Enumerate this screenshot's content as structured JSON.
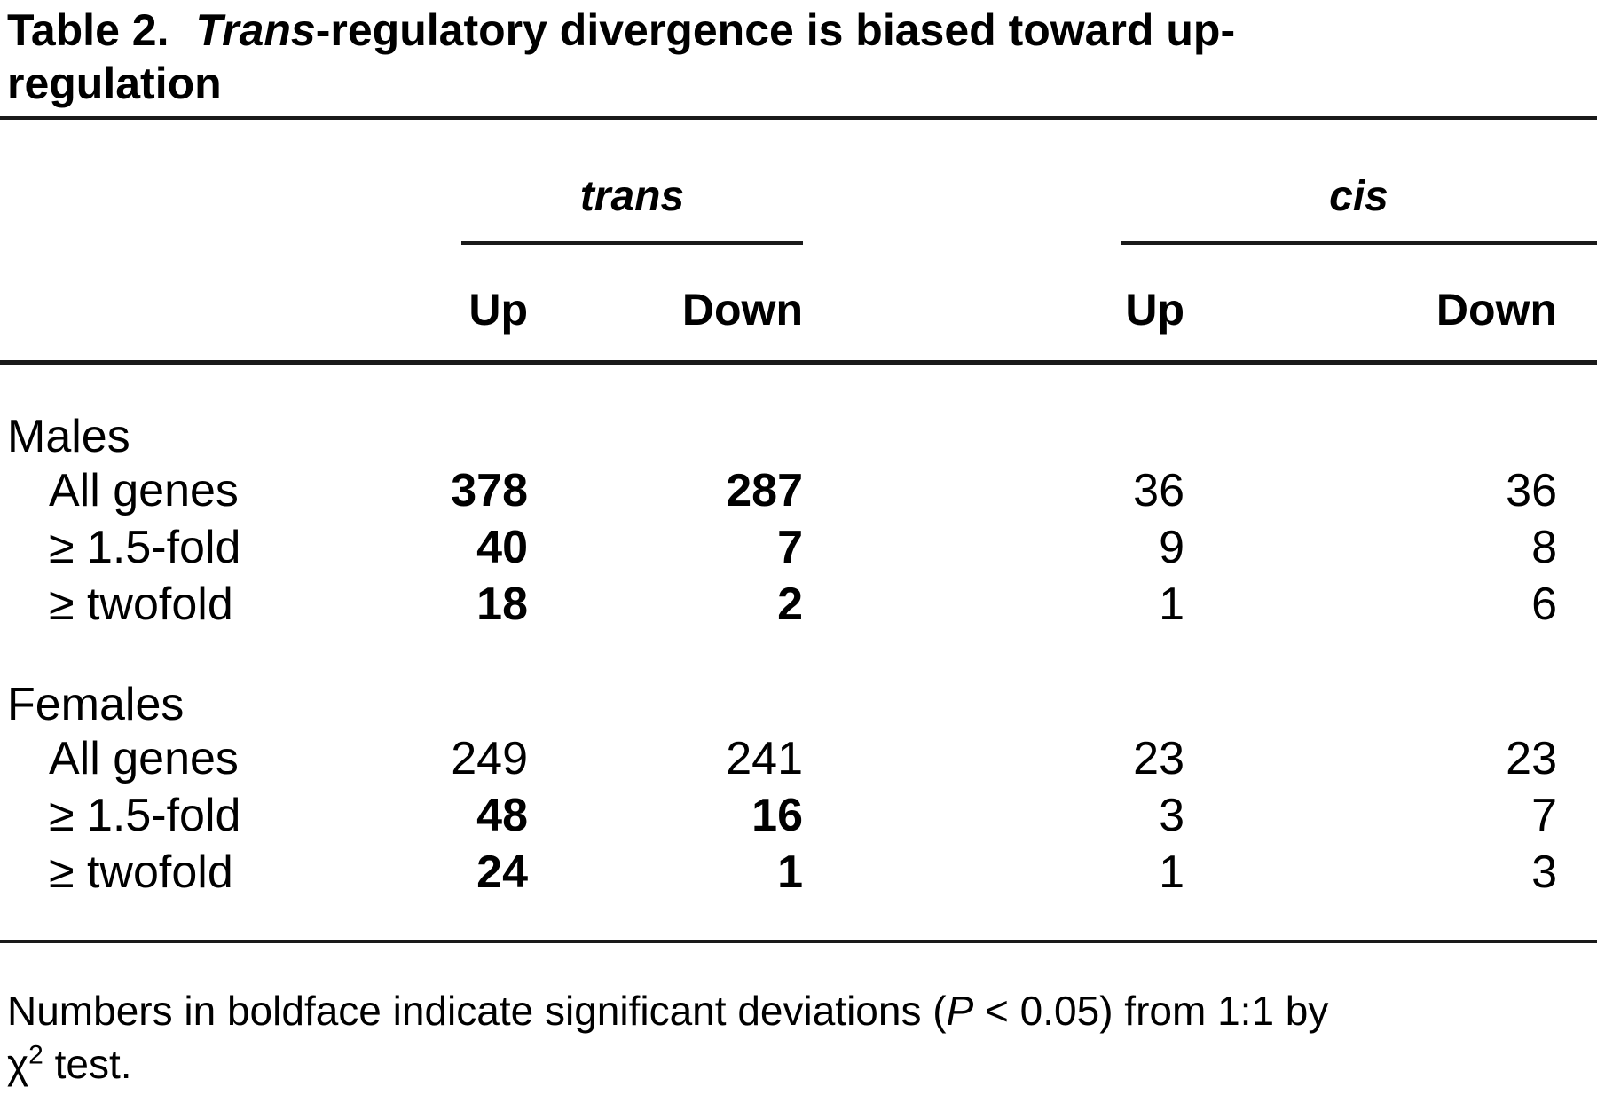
{
  "title": {
    "label": "Table 2.",
    "italic_part": "Trans",
    "rest_line1": "-regulatory divergence is biased toward up-",
    "rest_line2": "regulation"
  },
  "columns": {
    "group_headers": [
      {
        "label": "trans"
      },
      {
        "label": "cis"
      }
    ],
    "sub_headers": [
      "Up",
      "Down",
      "Up",
      "Down"
    ]
  },
  "sections": [
    {
      "label": "Males",
      "rows": [
        {
          "label": "All genes",
          "values": [
            {
              "v": "378",
              "bold": true
            },
            {
              "v": "287",
              "bold": true
            },
            {
              "v": "36",
              "bold": false
            },
            {
              "v": "36",
              "bold": false
            }
          ]
        },
        {
          "label": "≥ 1.5-fold",
          "values": [
            {
              "v": "40",
              "bold": true
            },
            {
              "v": "7",
              "bold": true
            },
            {
              "v": "9",
              "bold": false
            },
            {
              "v": "8",
              "bold": false
            }
          ]
        },
        {
          "label": "≥ twofold",
          "values": [
            {
              "v": "18",
              "bold": true
            },
            {
              "v": "2",
              "bold": true
            },
            {
              "v": "1",
              "bold": false
            },
            {
              "v": "6",
              "bold": false
            }
          ]
        }
      ]
    },
    {
      "label": "Females",
      "rows": [
        {
          "label": "All genes",
          "values": [
            {
              "v": "249",
              "bold": false
            },
            {
              "v": "241",
              "bold": false
            },
            {
              "v": "23",
              "bold": false
            },
            {
              "v": "23",
              "bold": false
            }
          ]
        },
        {
          "label": "≥ 1.5-fold",
          "values": [
            {
              "v": "48",
              "bold": true
            },
            {
              "v": "16",
              "bold": true
            },
            {
              "v": "3",
              "bold": false
            },
            {
              "v": "7",
              "bold": false
            }
          ]
        },
        {
          "label": "≥ twofold",
          "values": [
            {
              "v": "24",
              "bold": true
            },
            {
              "v": "1",
              "bold": true
            },
            {
              "v": "1",
              "bold": false
            },
            {
              "v": "3",
              "bold": false
            }
          ]
        }
      ]
    }
  ],
  "footnote": {
    "prefix": "Numbers in boldface indicate significant deviations (",
    "p_symbol": "P",
    "condition": " < 0.05) from 1:1 by",
    "chi_symbol": "χ",
    "chi_exponent": "2",
    "suffix": " test."
  },
  "colors": {
    "background": "#ffffff",
    "text": "#000000",
    "rule": "#1a1a1a"
  }
}
